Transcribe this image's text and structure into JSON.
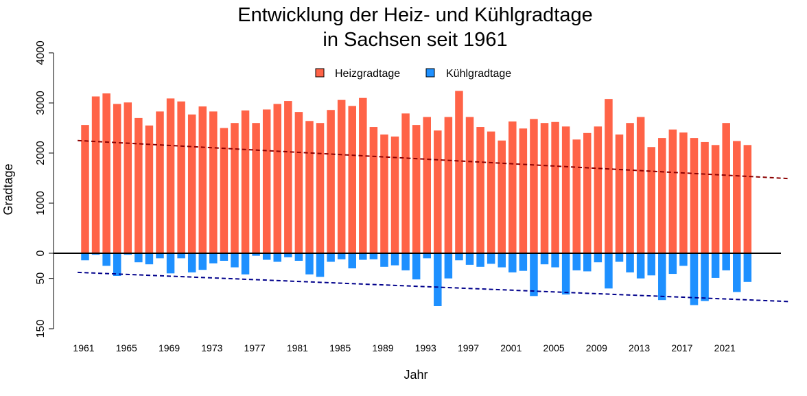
{
  "chart_data": {
    "type": "bar",
    "title_line1": "Entwicklung der Heiz- und Kühlgradtage",
    "title_line2": "in Sachsen seit 1961",
    "xlabel": "Jahr",
    "ylabel": "Gradtage",
    "x_tick_labels": [
      "1961",
      "1965",
      "1969",
      "1973",
      "1977",
      "1981",
      "1985",
      "1989",
      "1993",
      "1997",
      "2001",
      "2005",
      "2009",
      "2013",
      "2017",
      "2021"
    ],
    "y_ticks_upper": [
      0,
      1000,
      2000,
      3000,
      4000
    ],
    "y_ticks_lower": [
      0,
      50,
      150
    ],
    "legend": {
      "position": "top-center",
      "entries": [
        "Heizgradtage",
        "Kühlgradtage"
      ]
    },
    "colors": {
      "heating": "#FF6347",
      "cooling": "#1E90FF",
      "heating_trend": "#8B0000",
      "cooling_trend": "#00008B"
    },
    "years": [
      1961,
      1962,
      1963,
      1964,
      1965,
      1966,
      1967,
      1968,
      1969,
      1970,
      1971,
      1972,
      1973,
      1974,
      1975,
      1976,
      1977,
      1978,
      1979,
      1980,
      1981,
      1982,
      1983,
      1984,
      1985,
      1986,
      1987,
      1988,
      1989,
      1990,
      1991,
      1992,
      1993,
      1994,
      1995,
      1996,
      1997,
      1998,
      1999,
      2000,
      2001,
      2002,
      2003,
      2004,
      2005,
      2006,
      2007,
      2008,
      2009,
      2010,
      2011,
      2012,
      2013,
      2014,
      2015,
      2016,
      2017,
      2018,
      2019,
      2020,
      2021,
      2022,
      2023
    ],
    "series": [
      {
        "name": "Heizgradtage",
        "values": [
          2560,
          3130,
          3190,
          2980,
          3010,
          2700,
          2550,
          2830,
          3090,
          3030,
          2770,
          2930,
          2830,
          2500,
          2600,
          2850,
          2600,
          2870,
          2980,
          3040,
          2820,
          2640,
          2600,
          2860,
          3060,
          2940,
          3100,
          2520,
          2370,
          2330,
          2790,
          2560,
          2720,
          2450,
          2720,
          3240,
          2720,
          2520,
          2430,
          2250,
          2630,
          2490,
          2680,
          2600,
          2620,
          2530,
          2270,
          2400,
          2530,
          3080,
          2370,
          2600,
          2720,
          2120,
          2300,
          2470,
          2410,
          2300,
          2220,
          2160,
          2600,
          2240,
          2160
        ]
      },
      {
        "name": "Kühlgradtage",
        "values": [
          14,
          3,
          25,
          45,
          3,
          18,
          22,
          10,
          40,
          10,
          38,
          33,
          20,
          15,
          28,
          42,
          5,
          13,
          17,
          8,
          15,
          42,
          47,
          17,
          12,
          30,
          13,
          12,
          27,
          24,
          34,
          52,
          10,
          105,
          50,
          14,
          23,
          27,
          21,
          28,
          38,
          35,
          85,
          22,
          28,
          82,
          34,
          36,
          18,
          70,
          17,
          38,
          50,
          44,
          93,
          41,
          25,
          103,
          95,
          49,
          34,
          77,
          57
        ]
      },
      {
        "name": "Heizgradtage Trend",
        "values": [
          2250,
          1490
        ]
      },
      {
        "name": "Kühlgradtage Trend",
        "values": [
          38,
          96
        ]
      }
    ],
    "trend_x_range": [
      1960.3,
      2026.9
    ]
  }
}
